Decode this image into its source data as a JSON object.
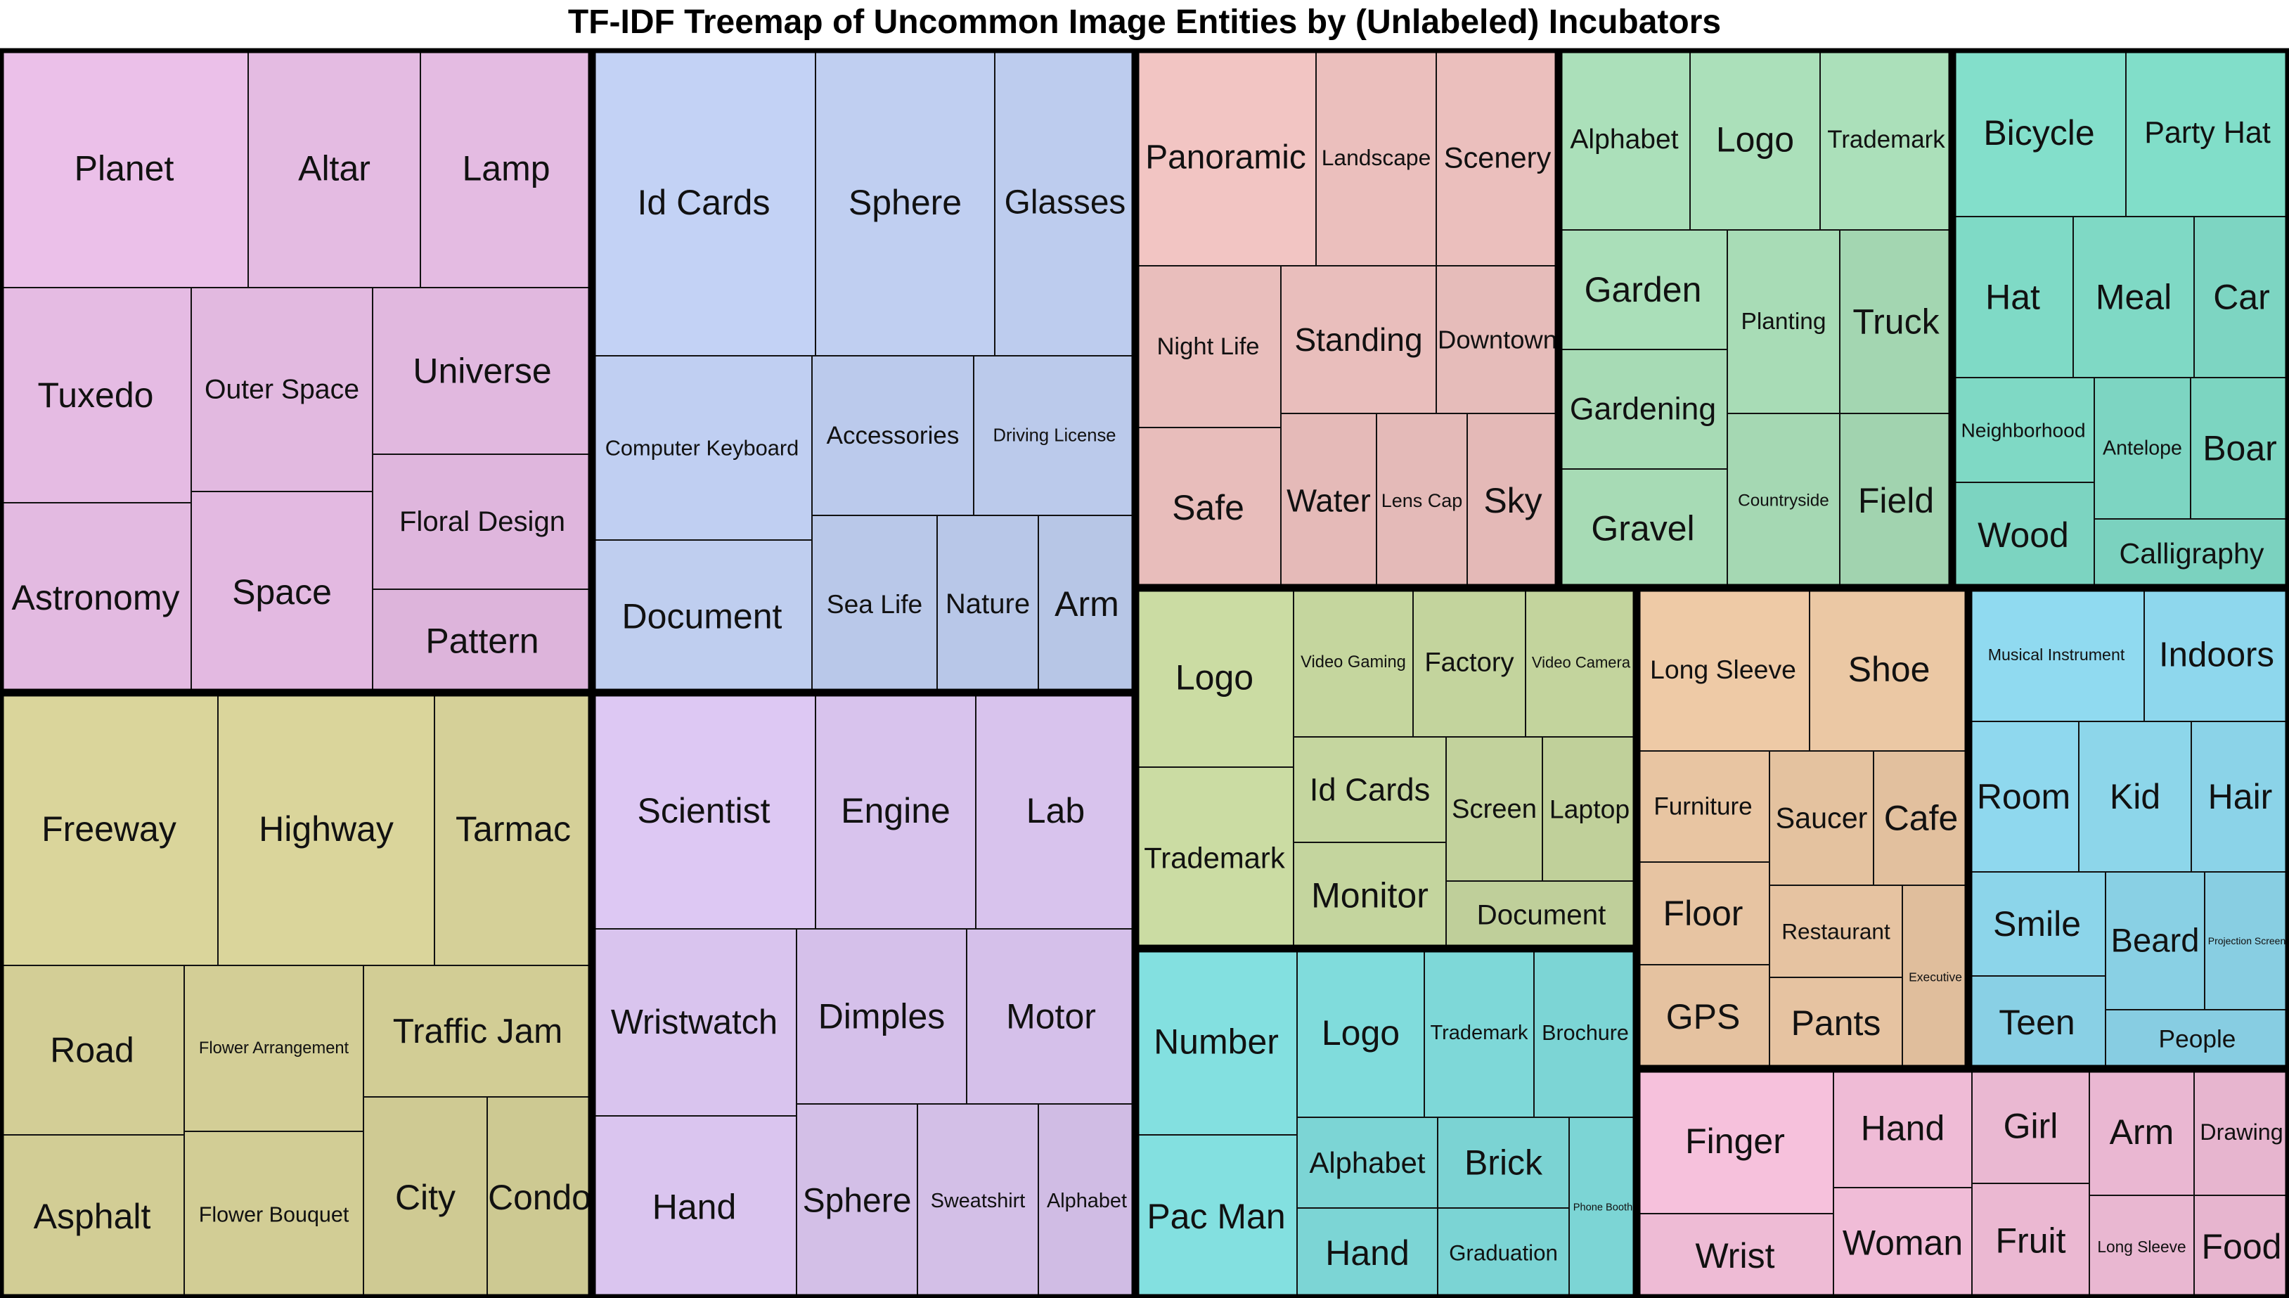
{
  "chart_data": {
    "type": "treemap",
    "title": "TF-IDF Treemap of Uncommon Image Entities by (Unlabeled) Incubators",
    "groups": [
      {
        "color": "#E6BCE4",
        "items": [
          {
            "label": "Planet",
            "value": 1.0
          },
          {
            "label": "Altar",
            "value": 0.7
          },
          {
            "label": "Lamp",
            "value": 0.7
          },
          {
            "label": "Tuxedo",
            "value": 0.74
          },
          {
            "label": "Outer Space",
            "value": 0.58
          },
          {
            "label": "Universe",
            "value": 0.55
          },
          {
            "label": "Astronomy",
            "value": 0.65
          },
          {
            "label": "Space",
            "value": 0.62
          },
          {
            "label": "Floral Design",
            "value": 0.45
          },
          {
            "label": "Pattern",
            "value": 0.34
          }
        ]
      },
      {
        "color": "#BFCEF0",
        "items": [
          {
            "label": "Id Cards",
            "value": 1.0
          },
          {
            "label": "Sphere",
            "value": 0.8
          },
          {
            "label": "Glasses",
            "value": 0.64
          },
          {
            "label": "Computer Keyboard",
            "value": 0.83
          },
          {
            "label": "Accessories",
            "value": 0.51
          },
          {
            "label": "Driving License",
            "value": 0.48
          },
          {
            "label": "Document",
            "value": 0.72
          },
          {
            "label": "Sea Life",
            "value": 0.37
          },
          {
            "label": "Nature",
            "value": 0.31
          },
          {
            "label": "Arm",
            "value": 0.24
          }
        ]
      },
      {
        "color": "#EDC1BF",
        "items": [
          {
            "label": "Panoramic",
            "value": 0.84
          },
          {
            "label": "Landscape",
            "value": 0.57
          },
          {
            "label": "Scenery",
            "value": 0.57
          },
          {
            "label": "Night Life",
            "value": 0.49
          },
          {
            "label": "Standing",
            "value": 0.5
          },
          {
            "label": "Downtown",
            "value": 0.38
          },
          {
            "label": "Safe",
            "value": 0.46
          },
          {
            "label": "Water",
            "value": 0.31
          },
          {
            "label": "Lens Cap",
            "value": 0.29
          },
          {
            "label": "Sky",
            "value": 0.26
          }
        ]
      },
      {
        "color": "#A8DCB6",
        "items": [
          {
            "label": "Alphabet",
            "value": 0.5
          },
          {
            "label": "Logo",
            "value": 0.5
          },
          {
            "label": "Trademark",
            "value": 0.5
          },
          {
            "label": "Garden",
            "value": 0.49
          },
          {
            "label": "Planting",
            "value": 0.47
          },
          {
            "label": "Truck",
            "value": 0.42
          },
          {
            "label": "Gardening",
            "value": 0.46
          },
          {
            "label": "Countryside",
            "value": 0.44
          },
          {
            "label": "Field",
            "value": 0.4
          },
          {
            "label": "Gravel",
            "value": 0.46
          }
        ]
      },
      {
        "color": "#80DBC7",
        "items": [
          {
            "label": "Bicycle",
            "value": 0.55
          },
          {
            "label": "Party Hat",
            "value": 0.5
          },
          {
            "label": "Hat",
            "value": 0.4
          },
          {
            "label": "Meal",
            "value": 0.37
          },
          {
            "label": "Car",
            "value": 0.28
          },
          {
            "label": "Neighborhood",
            "value": 0.38
          },
          {
            "label": "Antelope",
            "value": 0.28
          },
          {
            "label": "Boar",
            "value": 0.27
          },
          {
            "label": "Wood",
            "value": 0.25
          },
          {
            "label": "Calligraphy",
            "value": 0.2
          }
        ]
      },
      {
        "color": "#D6D198",
        "items": [
          {
            "label": "Freeway",
            "value": 1.0
          },
          {
            "label": "Highway",
            "value": 1.0
          },
          {
            "label": "Tarmac",
            "value": 0.73
          },
          {
            "label": "Road",
            "value": 0.6
          },
          {
            "label": "Flower Arrangement",
            "value": 0.58
          },
          {
            "label": "Traffic Jam",
            "value": 0.54
          },
          {
            "label": "Asphalt",
            "value": 0.55
          },
          {
            "label": "Flower Bouquet",
            "value": 0.53
          },
          {
            "label": "City",
            "value": 0.34
          },
          {
            "label": "Condo",
            "value": 0.28
          }
        ]
      },
      {
        "color": "#D9C4EE",
        "items": [
          {
            "label": "Scientist",
            "value": 1.0
          },
          {
            "label": "Engine",
            "value": 0.74
          },
          {
            "label": "Lab",
            "value": 0.74
          },
          {
            "label": "Wristwatch",
            "value": 0.8
          },
          {
            "label": "Dimples",
            "value": 0.6
          },
          {
            "label": "Motor",
            "value": 0.6
          },
          {
            "label": "Hand",
            "value": 0.84
          },
          {
            "label": "Sphere",
            "value": 0.5
          },
          {
            "label": "Sweatshirt",
            "value": 0.5
          },
          {
            "label": "Alphabet",
            "value": 0.37
          }
        ]
      },
      {
        "color": "#C7D8A0",
        "items": [
          {
            "label": "Logo",
            "value": 0.58
          },
          {
            "label": "Trademark",
            "value": 0.58
          },
          {
            "label": "Video Gaming",
            "value": 0.42
          },
          {
            "label": "Factory",
            "value": 0.38
          },
          {
            "label": "Video Camera",
            "value": 0.38
          },
          {
            "label": "Id Cards",
            "value": 0.43
          },
          {
            "label": "Screen",
            "value": 0.34
          },
          {
            "label": "Laptop",
            "value": 0.29
          },
          {
            "label": "Monitor",
            "value": 0.4
          },
          {
            "label": "Document",
            "value": 0.27
          }
        ]
      },
      {
        "color": "#E9C6A3",
        "items": [
          {
            "label": "Long Sleeve",
            "value": 0.56
          },
          {
            "label": "Shoe",
            "value": 0.49
          },
          {
            "label": "Furniture",
            "value": 0.41
          },
          {
            "label": "Saucer",
            "value": 0.29
          },
          {
            "label": "Cafe",
            "value": 0.24
          },
          {
            "label": "Floor",
            "value": 0.38
          },
          {
            "label": "Restaurant",
            "value": 0.34
          },
          {
            "label": "Executive",
            "value": 0.18
          },
          {
            "label": "GPS",
            "value": 0.32
          },
          {
            "label": "Pants",
            "value": 0.34
          }
        ]
      },
      {
        "color": "#80DCDC",
        "items": [
          {
            "label": "Number",
            "value": 0.63
          },
          {
            "label": "Logo",
            "value": 0.53
          },
          {
            "label": "Trademark",
            "value": 0.46
          },
          {
            "label": "Brochure",
            "value": 0.4
          },
          {
            "label": "Pac Man",
            "value": 0.63
          },
          {
            "label": "Alphabet",
            "value": 0.4
          },
          {
            "label": "Brick",
            "value": 0.36
          },
          {
            "label": "Hand",
            "value": 0.4
          },
          {
            "label": "Graduation",
            "value": 0.38
          },
          {
            "label": "Phone Booth",
            "value": 0.4
          }
        ]
      },
      {
        "color": "#8DD6EB",
        "items": [
          {
            "label": "Musical Instrument",
            "value": 0.44
          },
          {
            "label": "Indoors",
            "value": 0.38
          },
          {
            "label": "Room",
            "value": 0.4
          },
          {
            "label": "Kid",
            "value": 0.34
          },
          {
            "label": "Hair",
            "value": 0.29
          },
          {
            "label": "Smile",
            "value": 0.33
          },
          {
            "label": "Beard",
            "value": 0.22
          },
          {
            "label": "Projection Screen",
            "value": 0.18
          },
          {
            "label": "Teen",
            "value": 0.23
          },
          {
            "label": "People",
            "value": 0.17
          }
        ]
      },
      {
        "color": "#F1BDD8",
        "items": [
          {
            "label": "Finger",
            "value": 0.53
          },
          {
            "label": "Hand",
            "value": 0.38
          },
          {
            "label": "Girl",
            "value": 0.29
          },
          {
            "label": "Arm",
            "value": 0.28
          },
          {
            "label": "Drawing",
            "value": 0.23
          },
          {
            "label": "Wrist",
            "value": 0.37
          },
          {
            "label": "Woman",
            "value": 0.4
          },
          {
            "label": "Fruit",
            "value": 0.3
          },
          {
            "label": "Long Sleeve",
            "value": 0.27
          },
          {
            "label": "Food",
            "value": 0.23
          }
        ]
      }
    ]
  }
}
